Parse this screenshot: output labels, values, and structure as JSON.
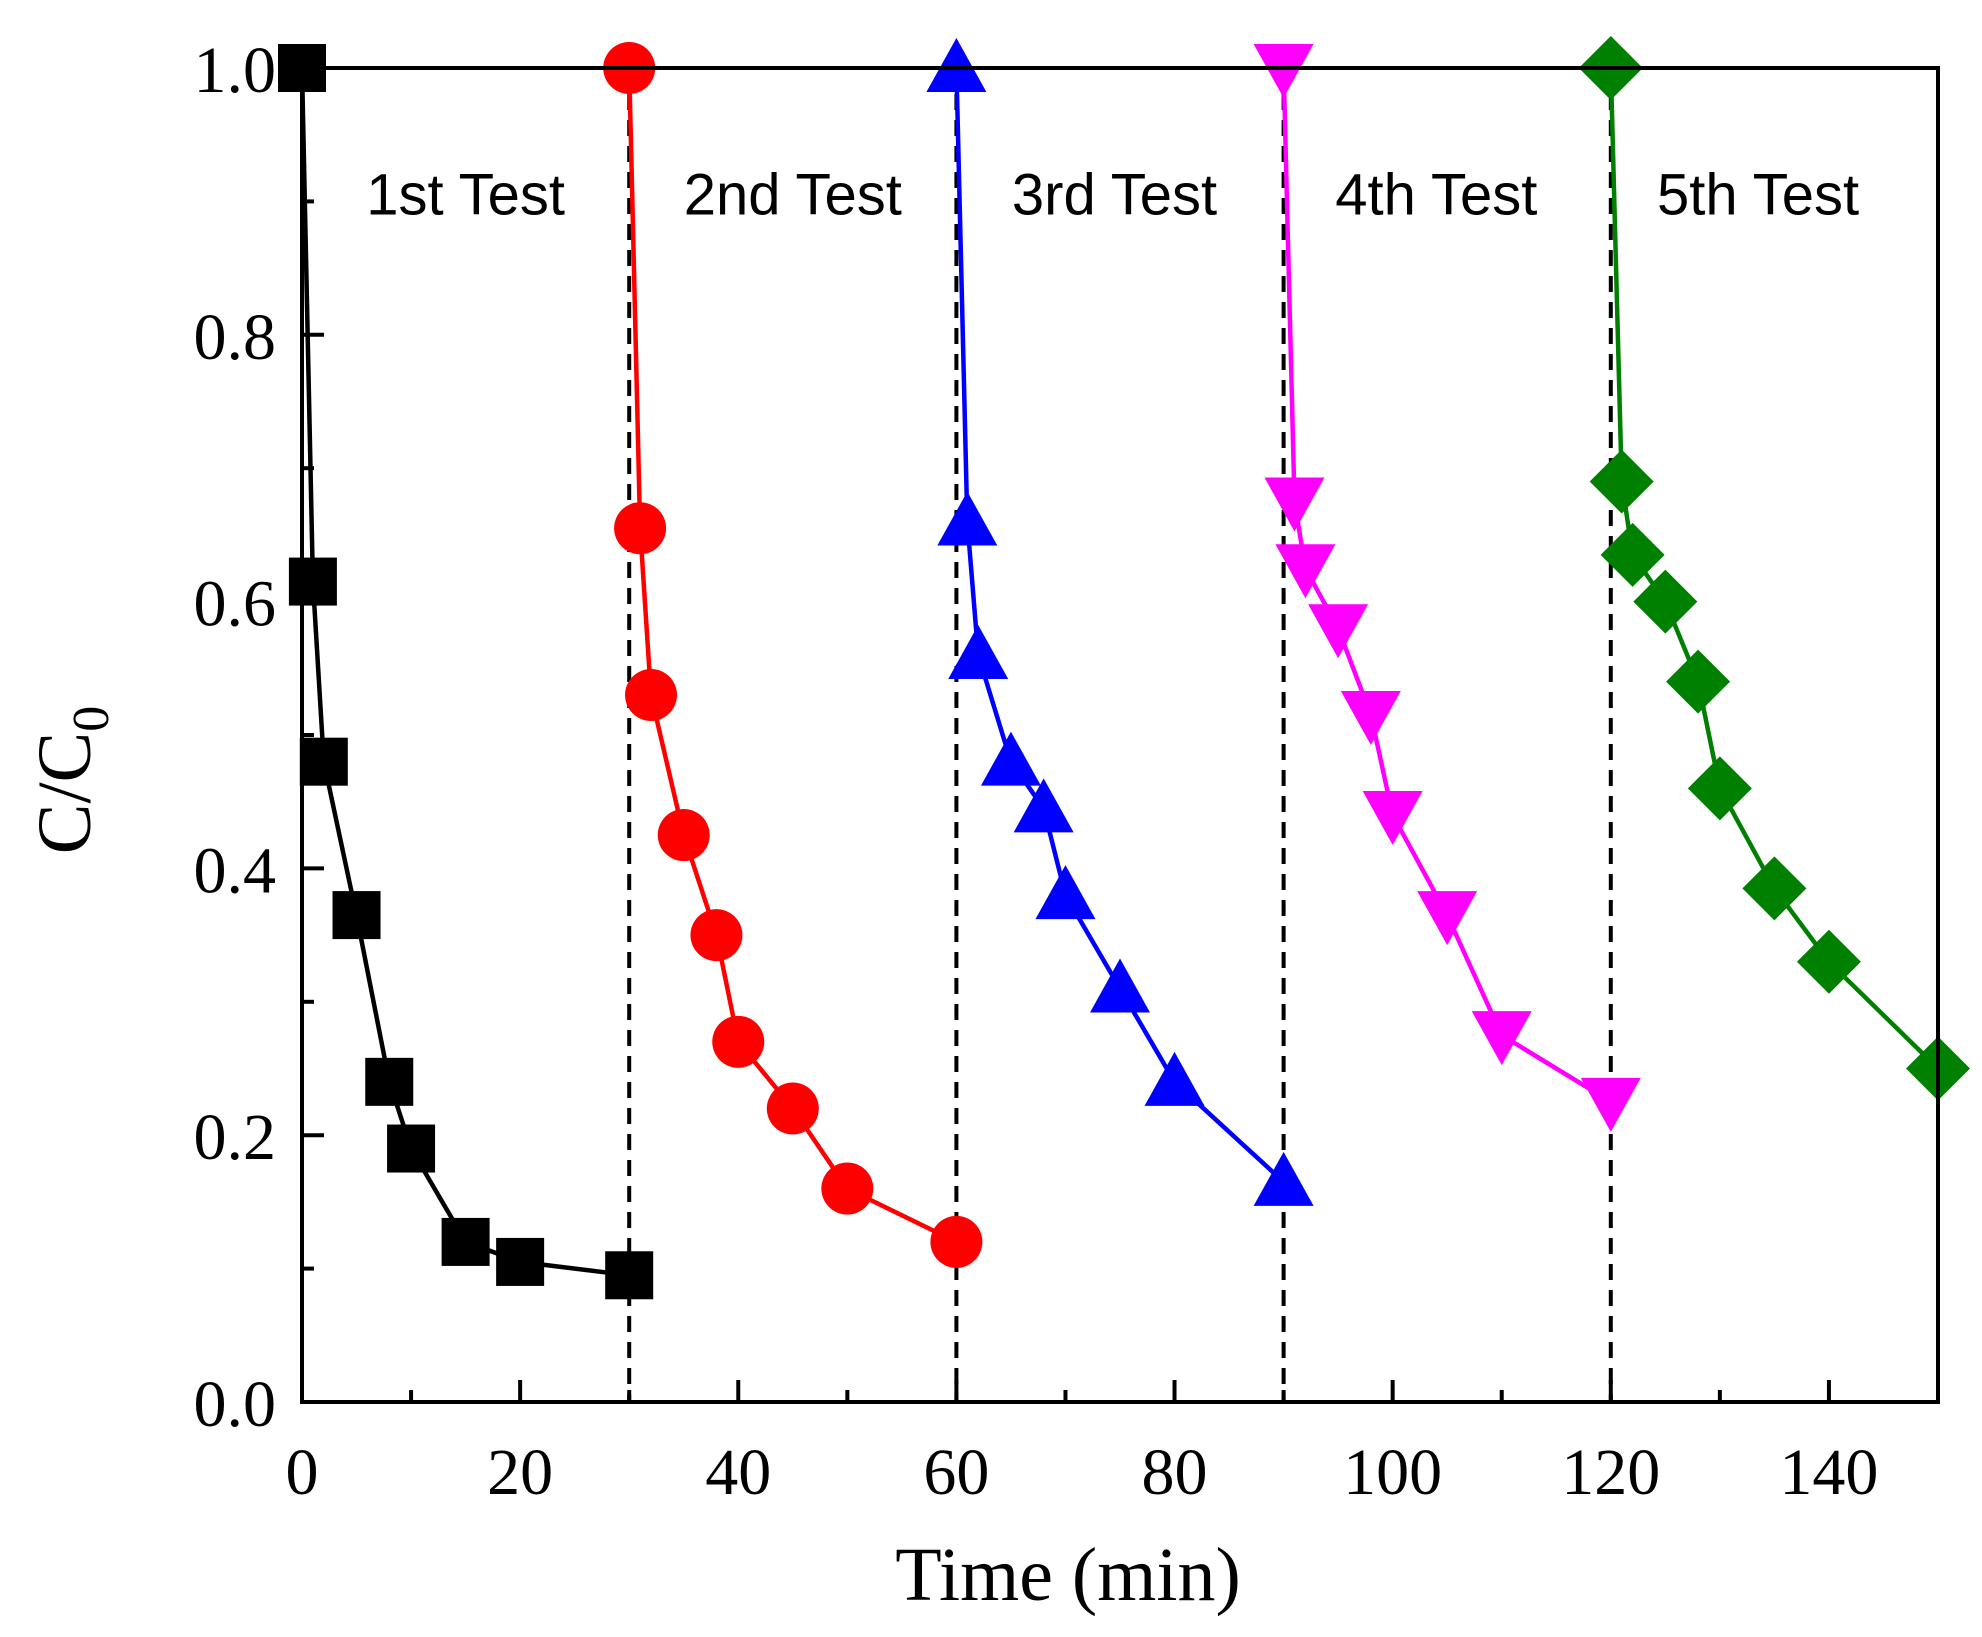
{
  "chart_data": {
    "type": "line",
    "title": "",
    "xlabel": "Time (min)",
    "ylabel_main": "C/C",
    "ylabel_sub": "0",
    "xlim": [
      0,
      150
    ],
    "ylim": [
      0,
      1.0
    ],
    "xticks": [
      0,
      20,
      40,
      60,
      80,
      100,
      120,
      140
    ],
    "xtick_labels": [
      "0",
      "20",
      "40",
      "60",
      "80",
      "100",
      "120",
      "140"
    ],
    "yticks": [
      0,
      0.2,
      0.4,
      0.6,
      0.8,
      1.0
    ],
    "ytick_labels": [
      "0.0",
      "0.2",
      "0.4",
      "0.6",
      "0.8",
      "1.0"
    ],
    "grid": false,
    "separators": [
      30,
      60,
      90,
      120
    ],
    "series": [
      {
        "name": "1st Test",
        "color": "#000000",
        "marker": "square",
        "x": [
          0,
          1,
          2,
          5,
          8,
          10,
          15,
          20,
          30
        ],
        "y": [
          1.0,
          0.615,
          0.48,
          0.365,
          0.24,
          0.19,
          0.12,
          0.105,
          0.095
        ]
      },
      {
        "name": "2nd Test",
        "color": "#ff0000",
        "marker": "circle",
        "x": [
          30,
          31,
          32,
          35,
          38,
          40,
          45,
          50,
          60
        ],
        "y": [
          1.0,
          0.655,
          0.53,
          0.425,
          0.35,
          0.27,
          0.22,
          0.16,
          0.12
        ]
      },
      {
        "name": "3rd Test",
        "color": "#0000ff",
        "marker": "triangle-up",
        "x": [
          60,
          61,
          62,
          65,
          68,
          70,
          75,
          80,
          90
        ],
        "y": [
          1.0,
          0.66,
          0.56,
          0.48,
          0.445,
          0.38,
          0.31,
          0.24,
          0.165
        ]
      },
      {
        "name": "4th Test",
        "color": "#ff00ff",
        "marker": "triangle-down",
        "x": [
          90,
          91,
          92,
          95,
          98,
          100,
          105,
          110,
          120
        ],
        "y": [
          1.0,
          0.675,
          0.625,
          0.58,
          0.515,
          0.44,
          0.365,
          0.275,
          0.225
        ]
      },
      {
        "name": "5th Test",
        "color": "#008000",
        "marker": "diamond",
        "x": [
          120,
          121,
          122,
          125,
          128,
          130,
          135,
          140,
          150
        ],
        "y": [
          1.0,
          0.69,
          0.635,
          0.6,
          0.54,
          0.46,
          0.385,
          0.33,
          0.25
        ]
      }
    ],
    "annotations": [
      {
        "text": "1st Test",
        "x": 15,
        "y": 0.905
      },
      {
        "text": "2nd Test",
        "x": 45,
        "y": 0.905
      },
      {
        "text": "3rd Test",
        "x": 74.5,
        "y": 0.905
      },
      {
        "text": "4th Test",
        "x": 104,
        "y": 0.905
      },
      {
        "text": "5th Test",
        "x": 133.5,
        "y": 0.905
      }
    ]
  }
}
